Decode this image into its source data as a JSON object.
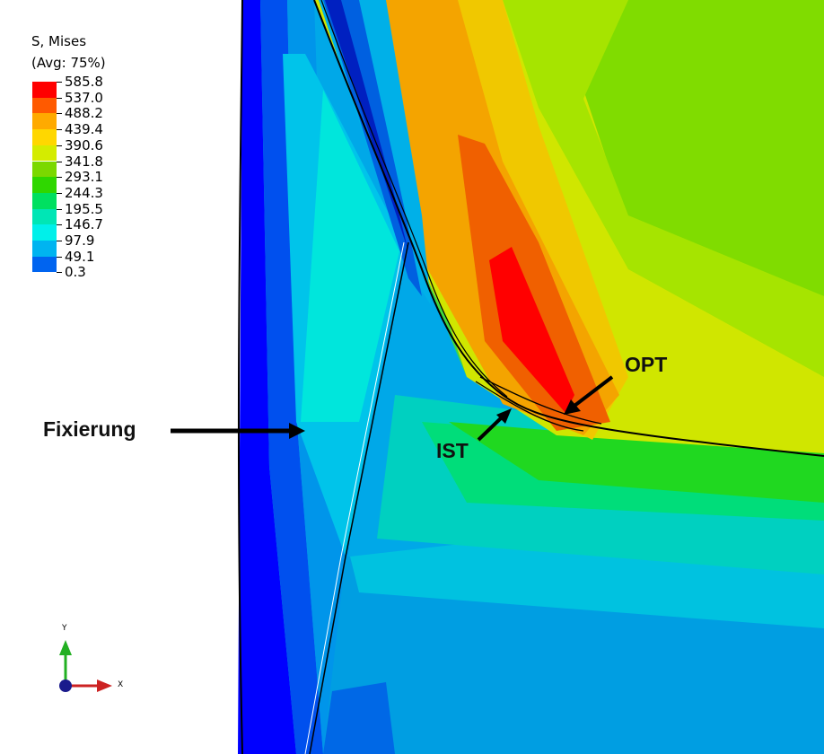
{
  "legend": {
    "title_line1": "S, Mises",
    "title_line2": "(Avg: 75%)",
    "labels": [
      "585.8",
      "537.0",
      "488.2",
      "439.4",
      "390.6",
      "341.8",
      "293.1",
      "244.3",
      "195.5",
      "146.7",
      "97.9",
      "49.1",
      "0.3"
    ],
    "colors": [
      "#ff0000",
      "#ff5a00",
      "#ffaa00",
      "#ffd700",
      "#d4ec00",
      "#7bd800",
      "#2fd700",
      "#00e060",
      "#00e6b5",
      "#00f0ea",
      "#00b4f0",
      "#0064f0",
      "#0000ff"
    ]
  },
  "annotations": {
    "fixierung": "Fixierung",
    "ist": "IST",
    "opt": "OPT"
  },
  "triad": {
    "y_label": "Y",
    "x_label": "X",
    "y_color": "#22b022",
    "x_color": "#cc2222",
    "origin_color": "#1a1a8c"
  }
}
